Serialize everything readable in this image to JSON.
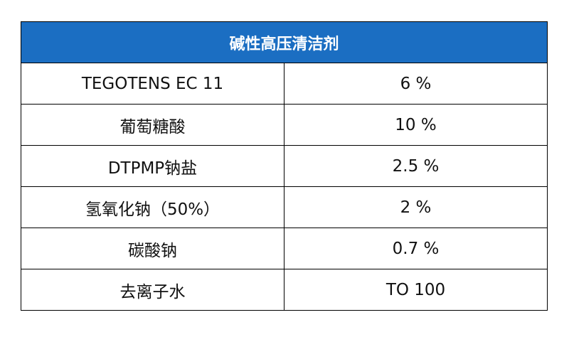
{
  "table": {
    "title": "碱性高压清洁剂",
    "rows": [
      [
        "TEGOTENS EC 11",
        "6 %"
      ],
      [
        "葡萄糖酸",
        "10 %"
      ],
      [
        "DTPMP钠盐",
        "2.5 %"
      ],
      [
        "氢氧化钠（50%）",
        "2 %"
      ],
      [
        "碳酸钠",
        "0.7 %"
      ],
      [
        "去离子水",
        "TO 100"
      ]
    ]
  }
}
